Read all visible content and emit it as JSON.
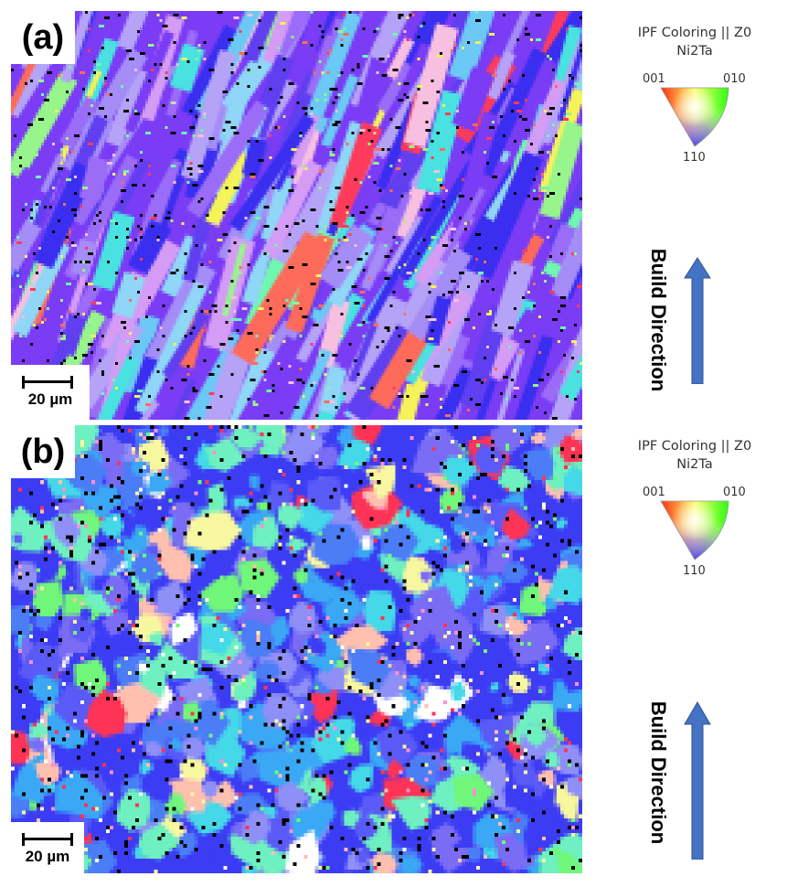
{
  "panels": [
    {
      "id": "a",
      "label": "(a)",
      "scale_bar": "20 µm"
    },
    {
      "id": "b",
      "label": "(b)",
      "scale_bar": "20 µm"
    }
  ],
  "legend": {
    "title": "IPF Coloring || Z0",
    "phase": "Ni2Ta",
    "corners": {
      "top_left": "001",
      "top_right": "010",
      "bottom": "110"
    },
    "corner_colors": {
      "001": "#ff0000",
      "010": "#00ff00",
      "110": "#0000ff"
    }
  },
  "build_direction": {
    "label": "Build Direction",
    "arrow_color": "#4472c4",
    "arrow_icon": "up-arrow-icon"
  },
  "maps": {
    "a": {
      "dominant_colors": [
        "#7a3cf5",
        "#9b6cf8",
        "#5f3ff0",
        "#a58df7",
        "#6cc8f5",
        "#49e2e0",
        "#8fd6f7",
        "#b5a3f8",
        "#d49cf5",
        "#3a2ef0"
      ],
      "accent_colors": [
        "#f4f35a",
        "#97f58c",
        "#ff6b5a",
        "#ff3b5c",
        "#70f7b1",
        "#f7c0e0",
        "#000000"
      ],
      "texture": "elongated columnar grains tilted toward upper right"
    },
    "b": {
      "dominant_colors": [
        "#3c3cf5",
        "#5a5af8",
        "#3aa8f5",
        "#45d8e8",
        "#6ef0c0",
        "#4b7df7",
        "#7a6cf5",
        "#8f8ff8"
      ],
      "accent_colors": [
        "#ff3355",
        "#ffc0b0",
        "#f7f7a0",
        "#70f77a",
        "#ffffff",
        "#000000",
        "#ff8fd0"
      ],
      "texture": "fine equiaxed mixed grains"
    }
  }
}
